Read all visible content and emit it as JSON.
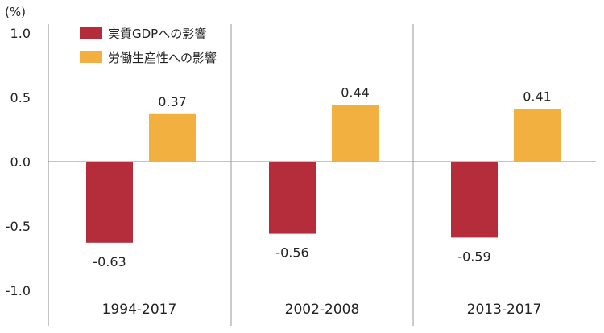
{
  "chart_data": {
    "type": "bar",
    "title": "",
    "ylabel": "(%)",
    "xlabel": "",
    "ylim": [
      -1.0,
      1.0
    ],
    "yticks": [
      "1.0",
      "0.5",
      "0.0",
      "-0.5",
      "-1.0"
    ],
    "ytick_values": [
      1.0,
      0.5,
      0.0,
      -0.5,
      -1.0
    ],
    "categories": [
      "1994-2017",
      "2002-2008",
      "2013-2017"
    ],
    "series": [
      {
        "name": "実質GDPへの影響",
        "color": "#B52D3A",
        "values": [
          -0.63,
          -0.56,
          -0.59
        ],
        "labels": [
          "-0.63",
          "-0.56",
          "-0.59"
        ]
      },
      {
        "name": "労働生産性への影響",
        "color": "#F2B041",
        "values": [
          0.37,
          0.44,
          0.41
        ],
        "labels": [
          "0.37",
          "0.44",
          "0.41"
        ]
      }
    ],
    "legend_position": "top-left",
    "grid": false
  }
}
